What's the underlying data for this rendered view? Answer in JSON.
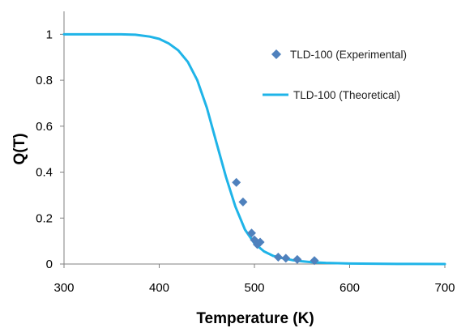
{
  "chart_data": {
    "type": "scatter",
    "title": "",
    "xlabel": "Temperature (K)",
    "ylabel": "Q(T)",
    "xlim": [
      300,
      700
    ],
    "ylim": [
      0,
      1.1
    ],
    "x_ticks": [
      300,
      400,
      500,
      600,
      700
    ],
    "y_ticks": [
      0,
      0.2,
      0.4,
      0.6,
      0.8,
      1
    ],
    "y_tick_labels": [
      "0",
      "0.2",
      "0.4",
      "0.6",
      "0.8",
      "1"
    ],
    "grid": false,
    "legend_position": "top-right",
    "series": [
      {
        "name": "TLD-100 (Experimental)",
        "kind": "scatter",
        "marker": "diamond",
        "color": "#4f81bd",
        "points": [
          [
            481,
            0.355
          ],
          [
            488,
            0.27
          ],
          [
            497,
            0.135
          ],
          [
            500,
            0.105
          ],
          [
            503,
            0.085
          ],
          [
            506,
            0.095
          ],
          [
            525,
            0.03
          ],
          [
            533,
            0.025
          ],
          [
            545,
            0.02
          ],
          [
            563,
            0.015
          ]
        ]
      },
      {
        "name": "TLD-100 (Theoretical)",
        "kind": "line",
        "color": "#1fb4e8",
        "points": [
          [
            300,
            1.0
          ],
          [
            320,
            1.0
          ],
          [
            340,
            1.0
          ],
          [
            360,
            1.0
          ],
          [
            375,
            0.998
          ],
          [
            390,
            0.99
          ],
          [
            400,
            0.98
          ],
          [
            410,
            0.96
          ],
          [
            420,
            0.93
          ],
          [
            430,
            0.88
          ],
          [
            440,
            0.8
          ],
          [
            450,
            0.68
          ],
          [
            460,
            0.53
          ],
          [
            470,
            0.38
          ],
          [
            480,
            0.25
          ],
          [
            490,
            0.15
          ],
          [
            500,
            0.09
          ],
          [
            510,
            0.055
          ],
          [
            520,
            0.035
          ],
          [
            530,
            0.025
          ],
          [
            540,
            0.017
          ],
          [
            550,
            0.012
          ],
          [
            560,
            0.008
          ],
          [
            575,
            0.005
          ],
          [
            600,
            0.002
          ],
          [
            650,
            0.0005
          ],
          [
            700,
            0.0
          ]
        ]
      }
    ]
  }
}
